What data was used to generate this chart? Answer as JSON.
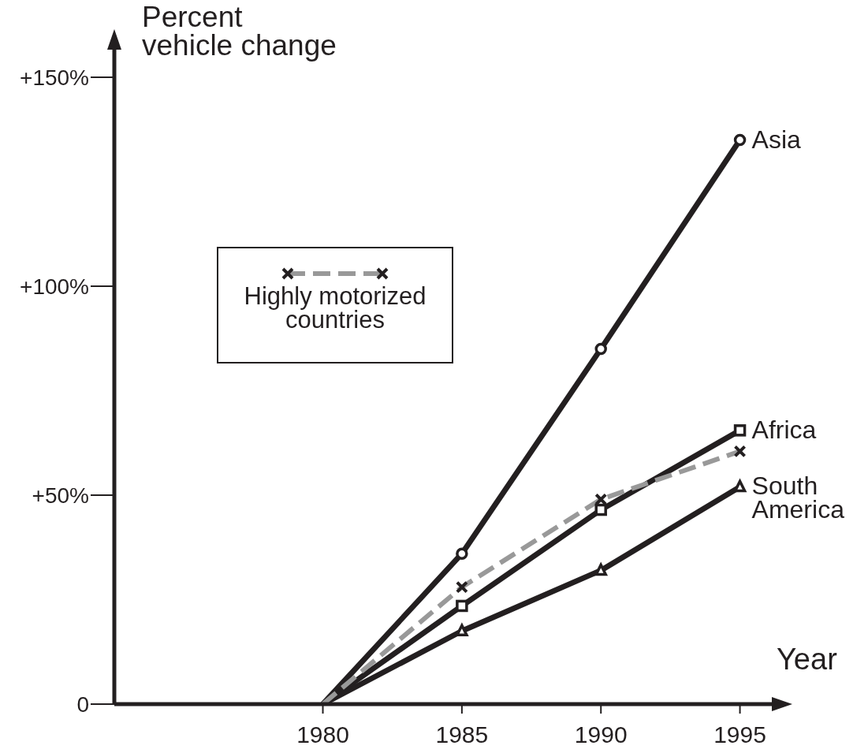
{
  "chart_data": {
    "type": "line",
    "xlabel": "Year",
    "ylabel": "Percent vehicle change",
    "x": [
      1980,
      1985,
      1990,
      1995
    ],
    "series": [
      {
        "name": "Asia",
        "color": "#231f20",
        "marker": "circle",
        "line_style": "solid",
        "values": [
          0,
          36,
          85,
          135
        ]
      },
      {
        "name": "Africa",
        "color": "#231f20",
        "marker": "square",
        "line_style": "solid",
        "values": [
          0,
          23.5,
          46.5,
          65.5
        ]
      },
      {
        "name": "South America",
        "color": "#231f20",
        "marker": "triangle",
        "line_style": "solid",
        "values": [
          0,
          17.5,
          32,
          52
        ]
      },
      {
        "name": "Highly motorized countries",
        "color": "#999999",
        "marker": "cross",
        "line_style": "dashed",
        "values": [
          0,
          28,
          49,
          60.5
        ]
      }
    ],
    "xlim": [
      1972.5,
      1996.6
    ],
    "xticks": [
      1980,
      1985,
      1990,
      1995
    ],
    "ylim": [
      0,
      160
    ],
    "yticks": [
      {
        "value": 0,
        "label": "0"
      },
      {
        "value": 50,
        "label": "+50%"
      },
      {
        "value": 100,
        "label": "+100%"
      },
      {
        "value": 150,
        "label": "+150%"
      }
    ],
    "grid": false,
    "legend": "top left"
  }
}
